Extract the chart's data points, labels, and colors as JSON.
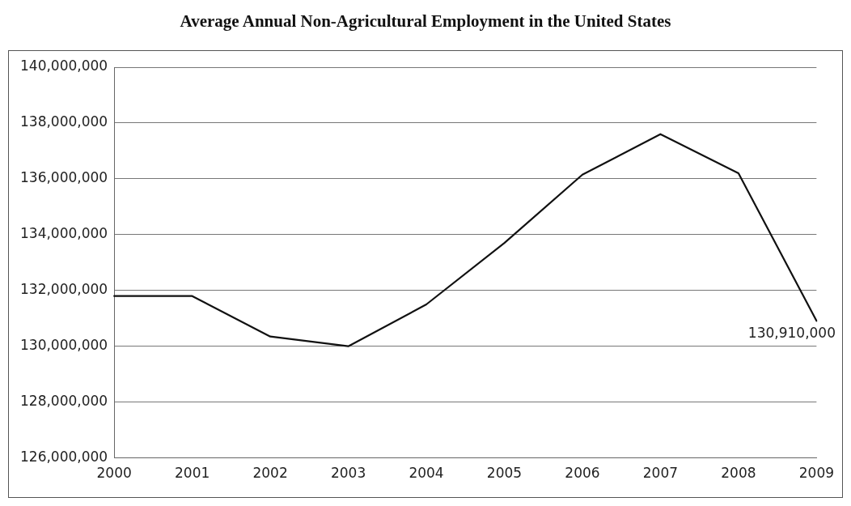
{
  "chart_data": {
    "type": "line",
    "title": "Average Annual Non-Agricultural Employment in the United States",
    "categories": [
      "2000",
      "2001",
      "2002",
      "2003",
      "2004",
      "2005",
      "2006",
      "2007",
      "2008",
      "2009"
    ],
    "series": [
      {
        "color": "#111111",
        "values": [
          131800000,
          131800000,
          130350000,
          130000000,
          131500000,
          133700000,
          136150000,
          137600000,
          136200000,
          130910000
        ],
        "value_labels": [
          null,
          null,
          null,
          null,
          null,
          null,
          null,
          null,
          null,
          "130,910,000"
        ]
      }
    ],
    "ylim": [
      126000000,
      140000000
    ],
    "yticks": [
      {
        "value": 126000000,
        "label": "126,000,000"
      },
      {
        "value": 128000000,
        "label": "128,000,000"
      },
      {
        "value": 130000000,
        "label": "130,000,000"
      },
      {
        "value": 132000000,
        "label": "132,000,000"
      },
      {
        "value": 134000000,
        "label": "134,000,000"
      },
      {
        "value": 136000000,
        "label": "136,000,000"
      },
      {
        "value": 138000000,
        "label": "138,000,000"
      },
      {
        "value": 140000000,
        "label": "140,000,000"
      }
    ],
    "grid": "y",
    "legend": false,
    "marker": "none",
    "line_style": "solid"
  }
}
